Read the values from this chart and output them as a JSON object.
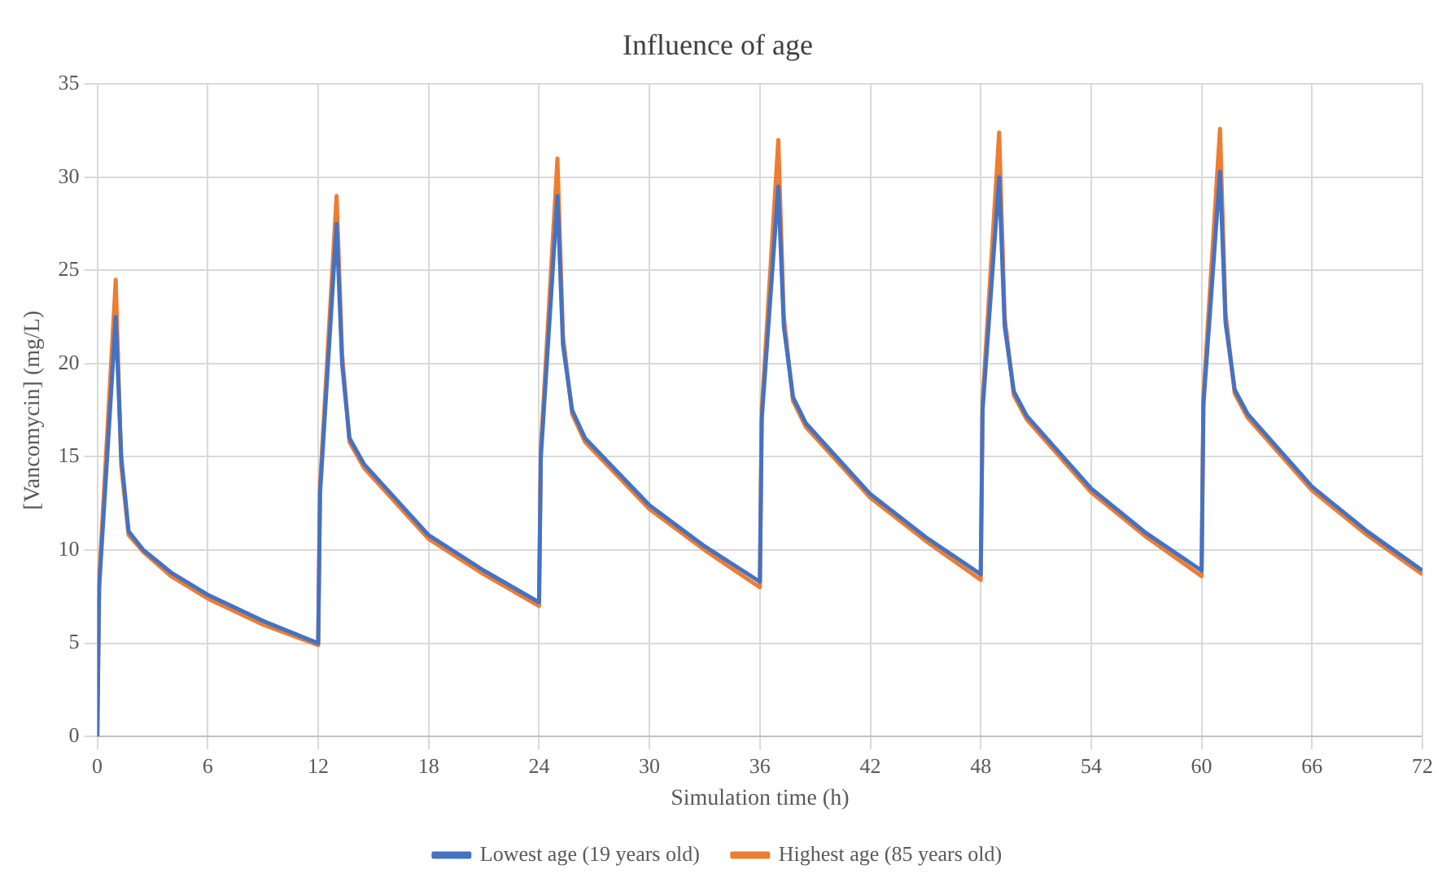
{
  "chart_data": {
    "type": "line",
    "title": "Influence of age",
    "xlabel": "Simulation time (h)",
    "ylabel": "[Vancomycin] (mg/L)",
    "x": [
      0,
      0.1,
      1,
      1.3,
      1.7,
      2.5,
      4,
      6,
      9,
      12,
      12.1,
      13,
      13.3,
      13.7,
      14.5,
      18,
      21,
      24,
      24.1,
      25,
      25.3,
      25.8,
      26.5,
      30,
      33,
      36,
      36.1,
      37,
      37.3,
      37.8,
      38.5,
      42,
      45,
      48,
      48.1,
      49,
      49.3,
      49.8,
      50.5,
      54,
      57,
      60,
      60.1,
      61,
      61.3,
      61.8,
      62.5,
      66,
      69,
      72
    ],
    "series": [
      {
        "name": "Lowest age (19 years old)",
        "color": "#4472c4",
        "values": [
          0,
          8,
          22.5,
          15,
          11,
          10,
          8.8,
          7.6,
          6.2,
          5.0,
          13,
          27.5,
          20,
          16,
          14.6,
          10.8,
          8.9,
          7.2,
          15,
          29,
          21,
          17.5,
          16,
          12.4,
          10.2,
          8.3,
          17,
          29.5,
          22,
          18.2,
          16.8,
          13,
          10.7,
          8.7,
          17.5,
          30,
          22,
          18.5,
          17.2,
          13.3,
          10.9,
          8.9,
          17.8,
          30.3,
          22.2,
          18.6,
          17.3,
          13.4,
          11,
          8.9
        ]
      },
      {
        "name": "Highest age (85 years old)",
        "color": "#ed7d31",
        "values": [
          0,
          8.5,
          24.5,
          14.5,
          10.8,
          9.9,
          8.6,
          7.4,
          6.0,
          4.9,
          13.5,
          29,
          20.5,
          15.8,
          14.4,
          10.6,
          8.7,
          7.0,
          15.5,
          31,
          21.5,
          17.3,
          15.8,
          12.2,
          10,
          8.0,
          17.5,
          32,
          22.5,
          18,
          16.6,
          12.8,
          10.5,
          8.4,
          18,
          32.4,
          22.5,
          18.3,
          17,
          13.1,
          10.7,
          8.6,
          18.3,
          32.6,
          22.7,
          18.4,
          17.1,
          13.2,
          10.8,
          8.7
        ]
      }
    ],
    "xlim": [
      0,
      72
    ],
    "xticks": [
      0,
      6,
      12,
      18,
      24,
      30,
      36,
      42,
      48,
      54,
      60,
      66,
      72
    ],
    "ylim": [
      0,
      35
    ],
    "yticks": [
      0,
      5,
      10,
      15,
      20,
      25,
      30,
      35
    ],
    "grid": true,
    "legend": "bottom",
    "marker": "none",
    "line_style": "solid"
  }
}
